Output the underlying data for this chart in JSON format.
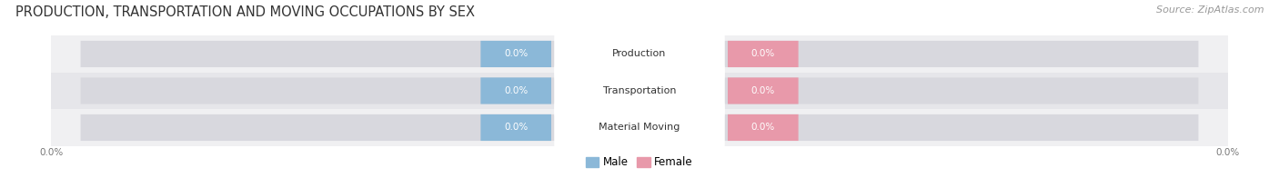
{
  "title": "PRODUCTION, TRANSPORTATION AND MOVING OCCUPATIONS BY SEX",
  "source_text": "Source: ZipAtlas.com",
  "categories": [
    "Production",
    "Transportation",
    "Material Moving"
  ],
  "male_values": [
    0.0,
    0.0,
    0.0
  ],
  "female_values": [
    0.0,
    0.0,
    0.0
  ],
  "male_color": "#8bb8d8",
  "female_color": "#e899aa",
  "male_label": "Male",
  "female_label": "Female",
  "row_bg_light": "#f0f0f2",
  "row_bg_dark": "#e6e6ea",
  "bar_bg_color": "#e0e0e5",
  "label_color": "#ffffff",
  "category_color": "#333333",
  "tick_color": "#777777",
  "title_color": "#333333",
  "source_color": "#999999",
  "title_fontsize": 10.5,
  "source_fontsize": 8,
  "value_fontsize": 7.5,
  "category_fontsize": 8,
  "legend_fontsize": 8.5,
  "background_color": "#ffffff"
}
